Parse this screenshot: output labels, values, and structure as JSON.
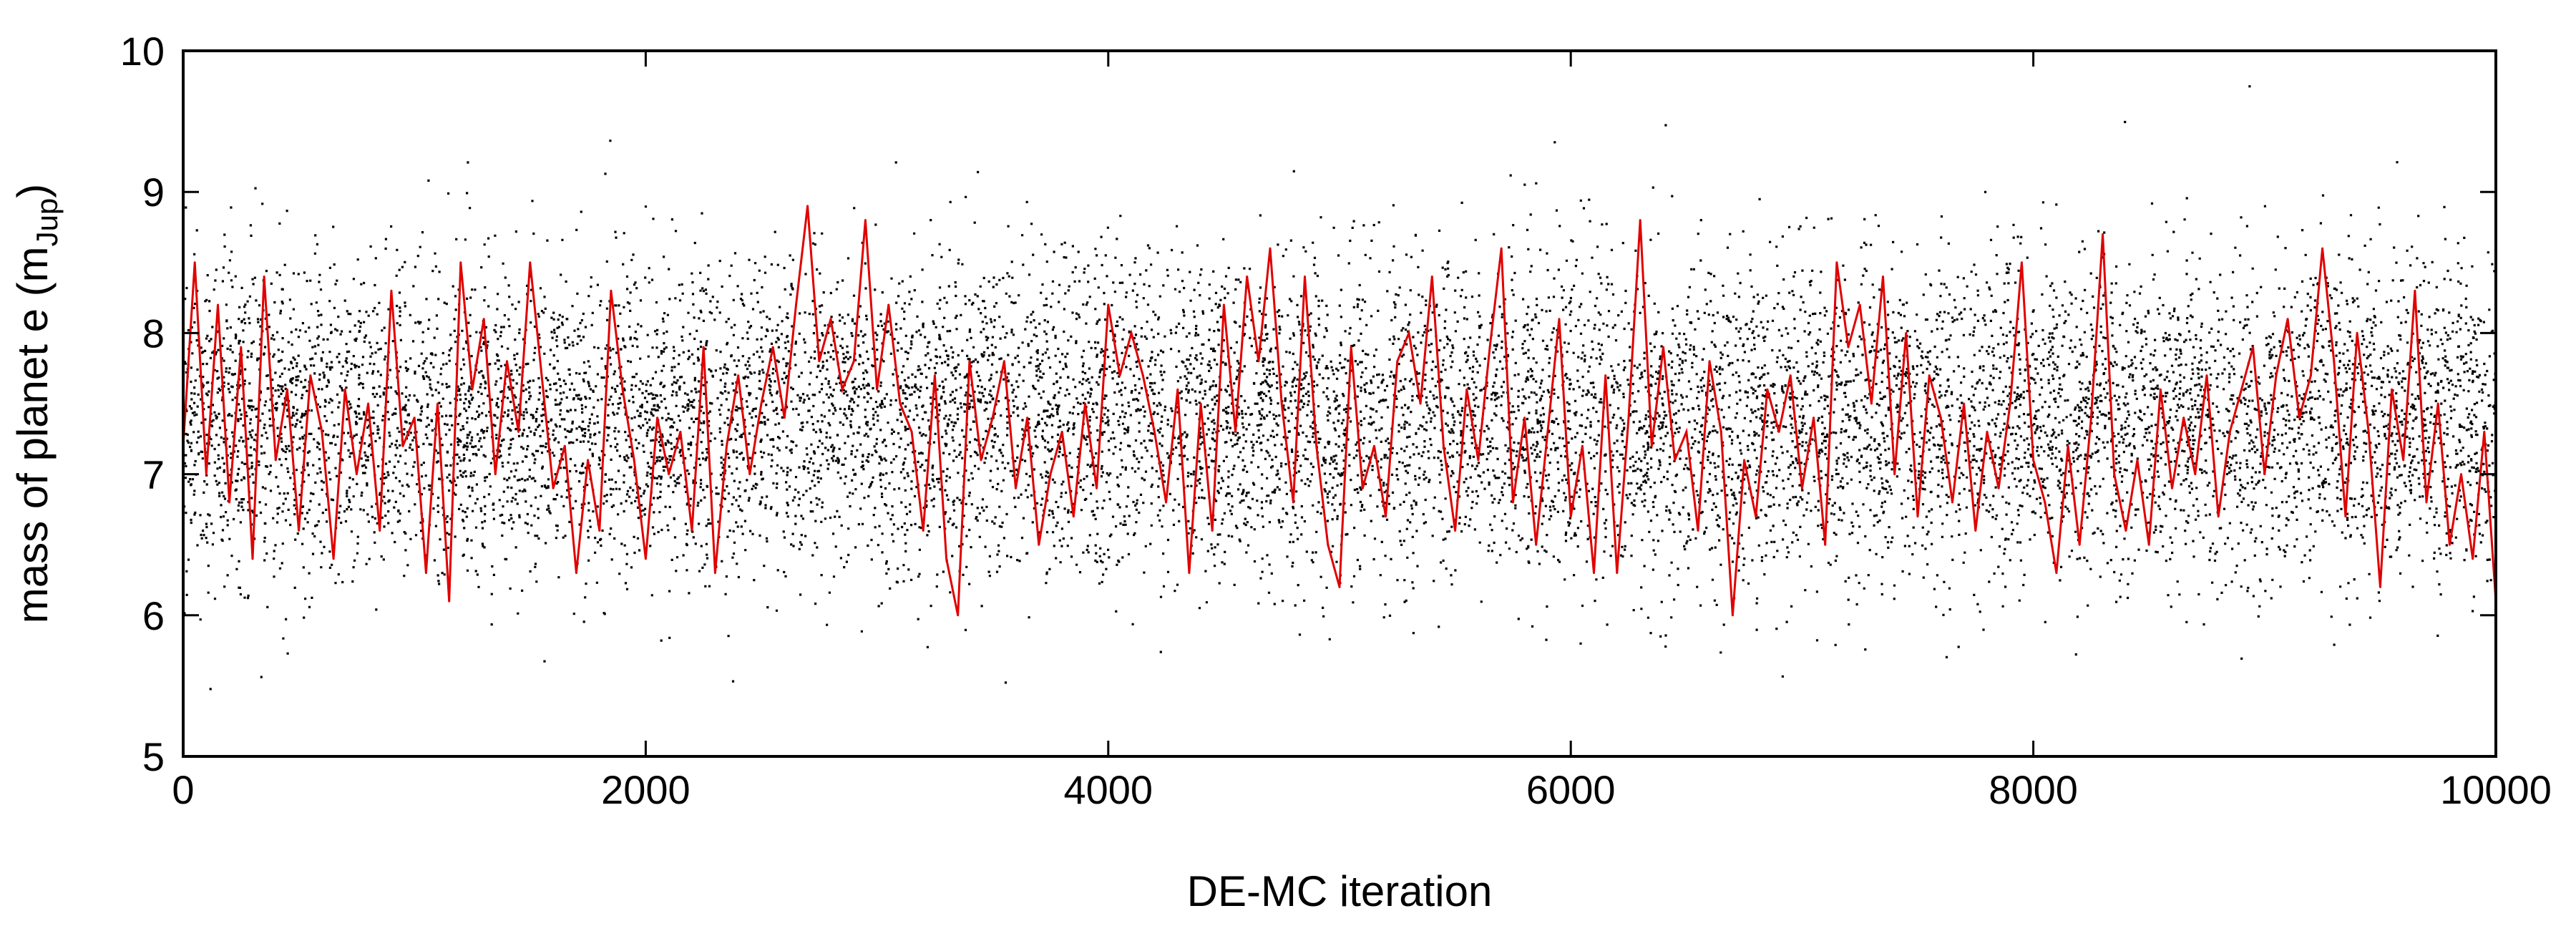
{
  "chart_data": {
    "type": "scatter",
    "title": "",
    "xlabel": "DE-MC iteration",
    "ylabel": {
      "prefix": "mass of planet e (m",
      "subscript": "Jup",
      "suffix": ")"
    },
    "xlim": [
      0,
      10000
    ],
    "ylim": [
      5,
      10
    ],
    "xticks": [
      0,
      2000,
      4000,
      6000,
      8000,
      10000
    ],
    "yticks": [
      5,
      6,
      7,
      8,
      9,
      10
    ],
    "grid": false,
    "legend": "none",
    "series": [
      {
        "kind": "scatter",
        "color": "#000000",
        "description_of_distribution": {
          "center": 7.4,
          "core_band": [
            6.4,
            8.6
          ],
          "outliers_range": [
            5.0,
            9.9
          ],
          "n_points_approx": 30000
        }
      },
      {
        "kind": "line",
        "color": "#e00000",
        "x": [
          0,
          50,
          100,
          150,
          200,
          250,
          300,
          350,
          400,
          450,
          500,
          550,
          600,
          650,
          700,
          750,
          800,
          850,
          900,
          950,
          1000,
          1050,
          1100,
          1150,
          1200,
          1250,
          1300,
          1350,
          1400,
          1450,
          1500,
          1550,
          1600,
          1650,
          1700,
          1750,
          1800,
          1850,
          1900,
          1950,
          2000,
          2050,
          2100,
          2150,
          2200,
          2250,
          2300,
          2350,
          2400,
          2450,
          2500,
          2550,
          2600,
          2650,
          2700,
          2750,
          2800,
          2850,
          2900,
          2950,
          3000,
          3050,
          3100,
          3150,
          3200,
          3250,
          3300,
          3350,
          3400,
          3450,
          3500,
          3550,
          3600,
          3650,
          3700,
          3750,
          3800,
          3850,
          3900,
          3950,
          4000,
          4050,
          4100,
          4150,
          4200,
          4250,
          4300,
          4350,
          4400,
          4450,
          4500,
          4550,
          4600,
          4650,
          4700,
          4750,
          4800,
          4850,
          4900,
          4950,
          5000,
          5050,
          5100,
          5150,
          5200,
          5250,
          5300,
          5350,
          5400,
          5450,
          5500,
          5550,
          5600,
          5650,
          5700,
          5750,
          5800,
          5850,
          5900,
          5950,
          6000,
          6050,
          6100,
          6150,
          6200,
          6250,
          6300,
          6350,
          6400,
          6450,
          6500,
          6550,
          6600,
          6650,
          6700,
          6750,
          6800,
          6850,
          6900,
          6950,
          7000,
          7050,
          7100,
          7150,
          7200,
          7250,
          7300,
          7350,
          7400,
          7450,
          7500,
          7550,
          7600,
          7650,
          7700,
          7750,
          7800,
          7850,
          7900,
          7950,
          8000,
          8050,
          8100,
          8150,
          8200,
          8250,
          8300,
          8350,
          8400,
          8450,
          8500,
          8550,
          8600,
          8650,
          8700,
          8750,
          8800,
          8850,
          8900,
          8950,
          9000,
          9050,
          9100,
          9150,
          9200,
          9250,
          9300,
          9350,
          9400,
          9450,
          9500,
          9550,
          9600,
          9650,
          9700,
          9750,
          9800,
          9850,
          9900,
          9950,
          10000
        ],
        "y": [
          7.2,
          8.5,
          7.0,
          8.2,
          6.8,
          7.9,
          6.4,
          8.4,
          7.1,
          7.6,
          6.6,
          7.7,
          7.3,
          6.4,
          7.6,
          7.0,
          7.5,
          6.6,
          8.3,
          7.2,
          7.4,
          6.3,
          7.5,
          6.1,
          8.5,
          7.6,
          8.1,
          7.0,
          7.8,
          7.3,
          8.5,
          7.7,
          6.9,
          7.2,
          6.3,
          7.1,
          6.6,
          8.3,
          7.6,
          7.1,
          6.4,
          7.4,
          7.0,
          7.3,
          6.6,
          7.9,
          6.3,
          7.2,
          7.7,
          7.0,
          7.5,
          7.9,
          7.4,
          8.2,
          8.9,
          7.8,
          8.1,
          7.6,
          7.8,
          8.8,
          7.6,
          8.2,
          7.5,
          7.3,
          6.6,
          7.7,
          6.4,
          6.0,
          7.8,
          7.1,
          7.4,
          7.8,
          6.9,
          7.4,
          6.5,
          7.0,
          7.3,
          6.7,
          7.5,
          6.9,
          8.2,
          7.7,
          8.0,
          7.7,
          7.3,
          6.8,
          7.6,
          6.3,
          7.5,
          6.6,
          8.2,
          7.3,
          8.4,
          7.8,
          8.6,
          7.5,
          6.8,
          8.4,
          7.2,
          6.5,
          6.2,
          7.9,
          6.9,
          7.2,
          6.7,
          7.8,
          8.0,
          7.5,
          8.4,
          7.2,
          6.6,
          7.6,
          7.1,
          7.9,
          8.6,
          6.8,
          7.4,
          6.5,
          7.3,
          8.1,
          6.7,
          7.2,
          6.3,
          7.7,
          6.3,
          7.4,
          8.8,
          7.2,
          7.9,
          7.1,
          7.3,
          6.6,
          7.8,
          7.3,
          6.0,
          7.1,
          6.7,
          7.6,
          7.3,
          7.7,
          6.9,
          7.4,
          6.5,
          8.5,
          7.9,
          8.2,
          7.5,
          8.4,
          7.0,
          8.0,
          6.7,
          7.7,
          7.4,
          6.8,
          7.5,
          6.6,
          7.3,
          6.9,
          7.5,
          8.5,
          7.1,
          6.8,
          6.3,
          7.2,
          6.5,
          7.4,
          8.7,
          7.0,
          6.6,
          7.1,
          6.5,
          7.6,
          6.9,
          7.4,
          7.0,
          7.7,
          6.7,
          7.3,
          7.6,
          7.9,
          7.0,
          7.7,
          8.1,
          7.4,
          7.7,
          8.6,
          7.8,
          6.7,
          8.0,
          7.3,
          6.2,
          7.6,
          7.1,
          8.3,
          6.8,
          7.5,
          6.5,
          7.0,
          6.4,
          7.3,
          6.1
        ]
      }
    ]
  }
}
